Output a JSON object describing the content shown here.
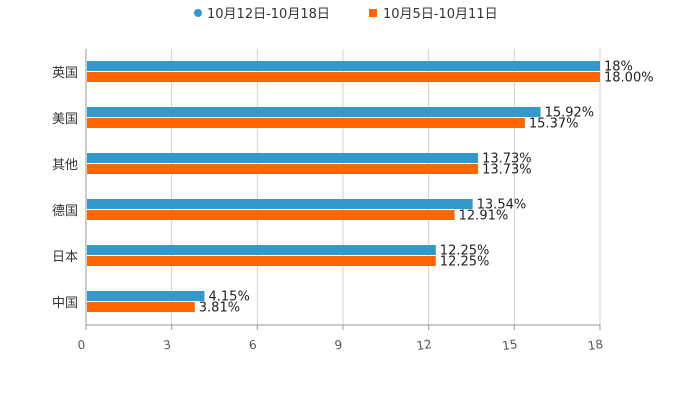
{
  "chart_data": {
    "type": "bar",
    "orientation": "horizontal",
    "categories": [
      "英国",
      "美国",
      "其他",
      "德国",
      "日本",
      "中国"
    ],
    "series": [
      {
        "name": "10月12日-10月18日",
        "color": "#3399cc",
        "values": [
          18,
          15.92,
          13.73,
          13.54,
          12.25,
          4.15
        ],
        "labels": [
          "18%",
          "15.92%",
          "13.73%",
          "13.54%",
          "12.25%",
          "4.15%"
        ]
      },
      {
        "name": "10月5日-10月11日",
        "color": "#ff6600",
        "values": [
          18.0,
          15.37,
          13.73,
          12.91,
          12.25,
          3.81
        ],
        "labels": [
          "18.00%",
          "15.37%",
          "13.73%",
          "12.91%",
          "12.25%",
          "3.81%"
        ]
      }
    ],
    "xlim": [
      0,
      18
    ],
    "xticks": [
      "0",
      "3",
      "6",
      "9",
      "12",
      "15",
      "18"
    ],
    "xtick_values": [
      0,
      3,
      6,
      9,
      12,
      15,
      18
    ],
    "legend_position": "top-center",
    "grid": true
  }
}
